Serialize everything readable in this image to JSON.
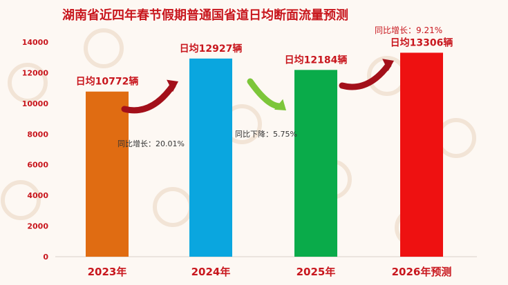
{
  "title": "湖南省近四年春节假期普通国省道日均断面流量预测",
  "colors": {
    "title": "#c8161d",
    "bars": [
      "#e06c12",
      "#0aa6df",
      "#0aab4a",
      "#ee1111"
    ],
    "arrow_up": "#a3101a",
    "arrow_down": "#7cc63a"
  },
  "chart_data": {
    "type": "bar",
    "title": "湖南省近四年春节假期普通国省道日均断面流量预测",
    "categories": [
      "2023年",
      "2024年",
      "2025年",
      "2026年预测"
    ],
    "values": [
      10772,
      12927,
      12184,
      13306
    ],
    "data_labels": [
      "日均10772辆",
      "日均12927辆",
      "日均12184辆",
      "日均13306辆"
    ],
    "ylim": [
      0,
      14000
    ],
    "yticks": [
      0,
      2000,
      4000,
      6000,
      8000,
      10000,
      12000,
      14000
    ],
    "ytick_labels": [
      "0",
      "2000",
      "4000",
      "6000",
      "8000",
      "10000",
      "12000",
      "14000"
    ],
    "grid": false,
    "annotations": [
      {
        "text": "同比增长：20.01%",
        "from": 0,
        "to": 1,
        "direction": "up"
      },
      {
        "text": "同比下降：5.75%",
        "from": 1,
        "to": 2,
        "direction": "down"
      },
      {
        "text": "同比增长：9.21%",
        "from": 2,
        "to": 3,
        "direction": "up"
      }
    ]
  }
}
